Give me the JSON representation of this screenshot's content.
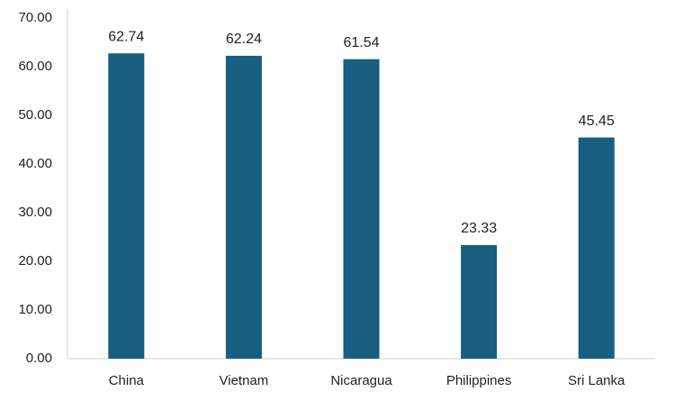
{
  "chart_data": {
    "type": "bar",
    "categories": [
      "China",
      "Vietnam",
      "Nicaragua",
      "Philippines",
      "Sri Lanka"
    ],
    "values": [
      62.74,
      62.24,
      61.54,
      23.33,
      45.45
    ],
    "color": "#175e81",
    "ylim": [
      0,
      70
    ],
    "yticks": [
      {
        "value": 0,
        "label": "0.00"
      },
      {
        "value": 10,
        "label": "10.00"
      },
      {
        "value": 20,
        "label": "20.00"
      },
      {
        "value": 30,
        "label": "30.00"
      },
      {
        "value": 40,
        "label": "40.00"
      },
      {
        "value": 50,
        "label": "50.00"
      },
      {
        "value": 60,
        "label": "60.00"
      },
      {
        "value": 70,
        "label": "70.00"
      }
    ],
    "grid": false
  }
}
